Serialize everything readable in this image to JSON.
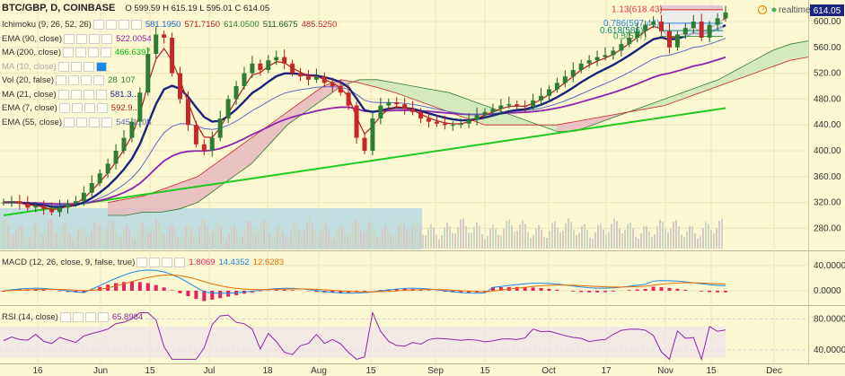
{
  "header": {
    "symbol": "BTC/GBP, D, COINBASE",
    "ohlc": "O 599.59 H 615.19 L 595.01 C 614.05",
    "realtime": "realtime",
    "price_badge": "614.05"
  },
  "indicators": [
    {
      "name": "Ichimoku (9, 26, 52, 26)",
      "values": [
        "581.1950",
        "571.7150",
        "614.0500",
        "511.6675",
        "485.5250"
      ],
      "colors": [
        "#1565c0",
        "#b71c1c",
        "#2e7d32",
        "#1b5e20",
        "#c62828"
      ]
    },
    {
      "name": "EMA (90, close)",
      "values": [
        "522.0054"
      ],
      "colors": [
        "#8e24aa"
      ]
    },
    {
      "name": "MA (200, close)",
      "values": [
        "466.6397"
      ],
      "colors": [
        "#00c000"
      ]
    },
    {
      "name": "MA (10, close)",
      "values": [],
      "colors": []
    },
    {
      "name": "Vol (20, false)",
      "values": [
        "28",
        "107"
      ],
      "colors": [
        "#2e7d32",
        "#2e7d32"
      ]
    },
    {
      "name": "MA (21, close)",
      "values": [
        "581.3..."
      ],
      "colors": [
        "#1a237e"
      ]
    },
    {
      "name": "EMA (7, close)",
      "values": [
        "592.9..."
      ],
      "colors": [
        "#b71c1c"
      ]
    },
    {
      "name": "EMA (55, close)",
      "values": [
        "545.1..05"
      ],
      "colors": [
        "#5c6bc0"
      ]
    }
  ],
  "fib_labels": [
    "1.13(618.43)",
    "0.786(597.44)",
    "0.618(586)",
    "0.5(577)"
  ],
  "macd_label": {
    "name": "MACD (12, 26, close, 9, false, true)",
    "values": [
      "1.8069",
      "14.4352",
      "12.6283"
    ],
    "colors": [
      "#e91e63",
      "#1e88e5",
      "#ef6c00"
    ]
  },
  "rsi_label": {
    "name": "RSI (14, close)",
    "values": [
      "65.8984"
    ],
    "colors": [
      "#8e24aa"
    ]
  },
  "chart_data": {
    "type": "candlestick",
    "price_axis": {
      "ticks": [
        280,
        320,
        360,
        400,
        440,
        480,
        520,
        560,
        600
      ],
      "range": [
        250,
        625
      ]
    },
    "macd_axis": {
      "ticks": [
        "40.0000",
        "0.0000"
      ],
      "values": [
        40,
        0
      ],
      "range": [
        -20,
        57
      ]
    },
    "rsi_axis": {
      "ticks": [
        "80.0000",
        "40.0000"
      ],
      "values": [
        80,
        40
      ],
      "range": [
        25,
        92
      ]
    },
    "x_labels": [
      "16",
      "Jun",
      "15",
      "Jul",
      "18",
      "Aug",
      "15",
      "Sep",
      "15",
      "Oct",
      "17",
      "Nov",
      "15",
      "Dec"
    ],
    "close": [
      320,
      322,
      318,
      312,
      315,
      310,
      305,
      312,
      318,
      322,
      335,
      350,
      365,
      380,
      400,
      420,
      445,
      490,
      550,
      580,
      575,
      520,
      480,
      440,
      410,
      400,
      420,
      450,
      480,
      500,
      520,
      535,
      525,
      540,
      545,
      535,
      520,
      515,
      510,
      515,
      505,
      500,
      490,
      470,
      420,
      400,
      450,
      470,
      475,
      472,
      465,
      460,
      450,
      445,
      442,
      440,
      440,
      442,
      448,
      455,
      460,
      465,
      470,
      472,
      470,
      468,
      478,
      485,
      495,
      505,
      515,
      525,
      535,
      540,
      545,
      548,
      555,
      565,
      575,
      585,
      595,
      600,
      585,
      560,
      580,
      590,
      600,
      575,
      595,
      605,
      614
    ],
    "ichimoku_cloud": {
      "span_a": [
        300,
        300,
        305,
        305,
        310,
        320,
        340,
        360,
        380,
        410,
        440,
        460,
        480,
        500,
        510,
        510,
        505,
        500,
        495,
        490,
        480,
        470,
        460,
        450,
        440,
        430,
        430,
        440,
        450,
        460,
        470,
        480,
        490,
        500,
        510,
        525,
        540,
        555,
        565,
        570
      ],
      "span_b": [
        320,
        325,
        330,
        340,
        350,
        360,
        380,
        400,
        420,
        440,
        460,
        480,
        500,
        510,
        505,
        498,
        490,
        480,
        470,
        460,
        450,
        440,
        440,
        440,
        440,
        440,
        445,
        450,
        455,
        460,
        465,
        470,
        480,
        490,
        500,
        510,
        520,
        530,
        540,
        545
      ]
    }
  }
}
